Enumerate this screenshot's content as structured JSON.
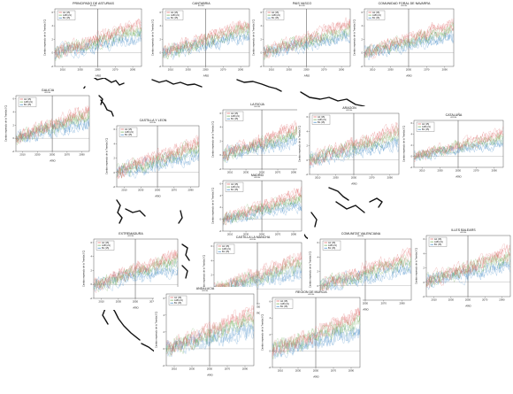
{
  "figure": {
    "ylabel": "Cambio esperado de la Tmedia [°C]",
    "xlabel": "AÑO",
    "subtitle": "ANUAL",
    "x_ticks": [
      2010,
      2030,
      2050,
      2070,
      2090
    ],
    "y_ticks": [
      -2,
      0,
      2,
      4,
      6
    ],
    "legend": [
      {
        "label": "A2",
        "count": "(15)",
        "color": "#e06666"
      },
      {
        "label": "A1B",
        "count": "(21)",
        "color": "#6aa84f"
      },
      {
        "label": "B1",
        "count": "(15)",
        "color": "#3d85c6"
      }
    ]
  },
  "chart_data": {
    "type": "line",
    "x_range": [
      2001,
      2100
    ],
    "ylim": [
      -2,
      6.5
    ],
    "ticks": {
      "x": [
        2010,
        2030,
        2050,
        2070,
        2090
      ],
      "y": [
        -2,
        0,
        2,
        4,
        6
      ]
    },
    "series_trend_end_2100": {
      "A2": 4.3,
      "A1B": 3.5,
      "B1": 2.4
    },
    "reference_year": 2050,
    "grid": false,
    "legend_position": "top-left",
    "regions": [
      {
        "name": "PRINCIPADO DE ASTURIAS"
      },
      {
        "name": "CANTABRIA"
      },
      {
        "name": "PAIS VASCO"
      },
      {
        "name": "COMUNIDAD FORAL DE NAVARRA"
      },
      {
        "name": "GALICIA"
      },
      {
        "name": "CASTILLA Y LEON"
      },
      {
        "name": "LA RIOJA"
      },
      {
        "name": "ARAGON"
      },
      {
        "name": "CATALUÑA"
      },
      {
        "name": "MADRID"
      },
      {
        "name": "EXTREMADURA"
      },
      {
        "name": "CASTILLA LA MANCHA"
      },
      {
        "name": "COMUNITAT VALENCIANA"
      },
      {
        "name": "ILLES BALEARS"
      },
      {
        "name": "ANDALUCIA"
      },
      {
        "name": "REGION DE MURCIA"
      }
    ]
  }
}
